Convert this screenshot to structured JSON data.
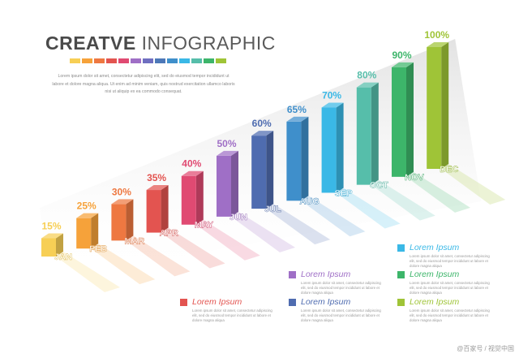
{
  "header": {
    "title_bold": "CREATVE",
    "title_light": "INFOGRAPHIC",
    "body": "Lorem ipsum dolor sit amet, consectetur adipiscing elit, sed do eiusmod tempor incididunt ut labore et dolore magna aliqua. Ut enim ad minim veniam, quis nostrud exercitation ullamco laboris nisi ut aliquip ex ea commodo consequat."
  },
  "swatch_colors": [
    "#F7CF55",
    "#F6A23A",
    "#EE7841",
    "#E35450",
    "#E04A72",
    "#9F6FC6",
    "#6F6FC0",
    "#4D78B8",
    "#3F8FCB",
    "#3AB8E6",
    "#56BEAA",
    "#3DB56A",
    "#9FC437"
  ],
  "chart_data": {
    "type": "bar",
    "categories": [
      "JAN",
      "FEB",
      "MAR",
      "APR",
      "MAY",
      "JUN",
      "JUL",
      "AUG",
      "SEP",
      "OCT",
      "NOV",
      "DEC"
    ],
    "values": [
      15,
      25,
      30,
      35,
      40,
      50,
      60,
      65,
      70,
      80,
      90,
      100
    ],
    "data_labels": [
      "15%",
      "25%",
      "30%",
      "35%",
      "40%",
      "50%",
      "60%",
      "65%",
      "70%",
      "80%",
      "90%",
      "100%"
    ],
    "colors": [
      "#F7CF55",
      "#F6A23A",
      "#EE7841",
      "#E35450",
      "#E04A72",
      "#9F6FC6",
      "#4F6CB0",
      "#3F8FCB",
      "#3AB8E6",
      "#56BEAA",
      "#3DB56A",
      "#9FC437"
    ],
    "ylim": [
      0,
      100
    ],
    "grid": false
  },
  "legend": [
    {
      "label": "Lorem Ipsum",
      "color": "#E35450",
      "desc": "Lorem ipsum dolor sit amet, consectetur adipiscing elit, sed do eiusmod tempor incididunt ut labore et dolore magna aliqua"
    },
    {
      "label": "Lorem Ipsum",
      "color": "#9F6FC6",
      "desc": "Lorem ipsum dolor sit amet, consectetur adipiscing elit, sed do eiusmod tempor incididunt ut labore et dolore magna aliqua"
    },
    {
      "label": "Lorem Ipsum",
      "color": "#4F6CB0",
      "desc": "Lorem ipsum dolor sit amet, consectetur adipiscing elit, sed do eiusmod tempor incididunt ut labore et dolore magna aliqua"
    },
    {
      "label": "Lorem Ipsum",
      "color": "#3AB8E6",
      "desc": "Lorem ipsum dolor sit amet, consectetur adipiscing elit, sed do eiusmod tempor incididunt ut labore et dolore magna aliqua"
    },
    {
      "label": "Lorem Ipsum",
      "color": "#3DB56A",
      "desc": "Lorem ipsum dolor sit amet, consectetur adipiscing elit, sed do eiusmod tempor incididunt ut labore et dolore magna aliqua"
    },
    {
      "label": "Lorem Ipsum",
      "color": "#9FC437",
      "desc": "Lorem ipsum dolor sit amet, consectetur adipiscing elit, sed do eiusmod tempor incididunt ut labore et dolore magna aliqua"
    }
  ],
  "watermark": "@百家号 / 视觉中国"
}
